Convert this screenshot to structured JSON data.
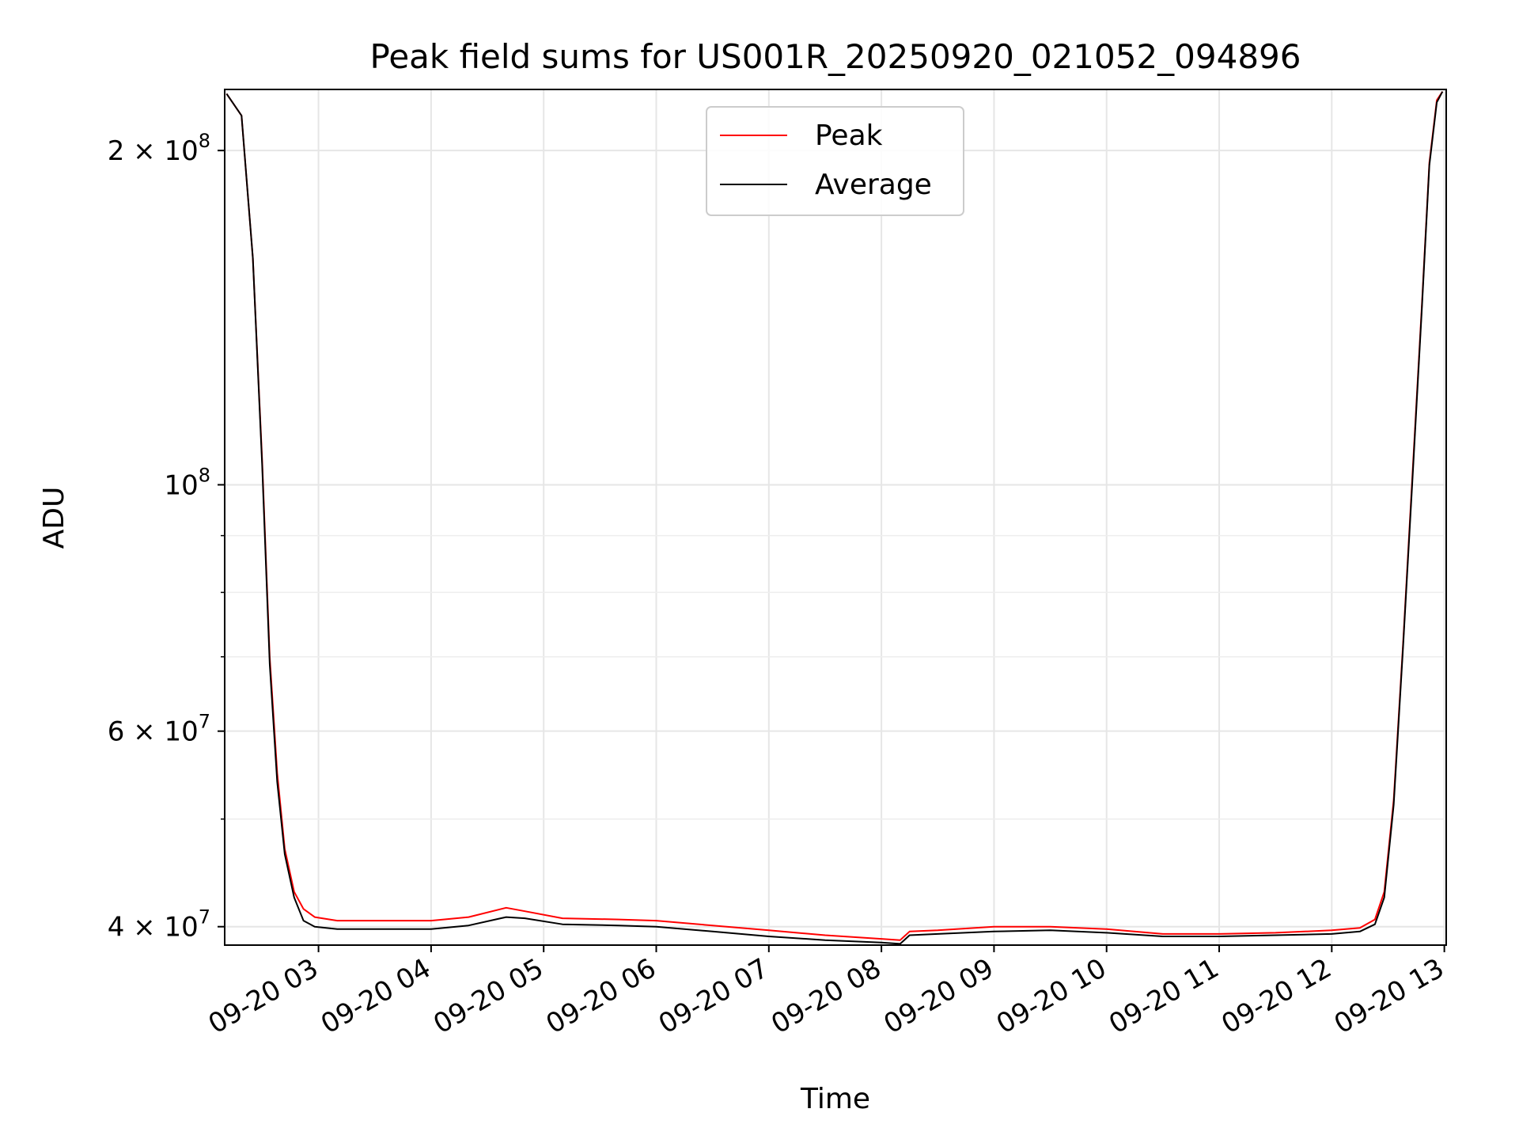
{
  "chart_data": {
    "type": "line",
    "title": "Peak field sums for US001R_20250920_021052_094896",
    "xlabel": "Time",
    "ylabel": "ADU",
    "y_scale": "log",
    "ylim": [
      38500000,
      227000000
    ],
    "xlim": [
      "2025-09-20 02:10",
      "2025-09-20 13:01"
    ],
    "grid": true,
    "legend_position": "top-center",
    "x_tick_labels": [
      "09-20 03",
      "09-20 04",
      "09-20 05",
      "09-20 06",
      "09-20 07",
      "09-20 08",
      "09-20 09",
      "09-20 10",
      "09-20 11",
      "09-20 12",
      "09-20 13"
    ],
    "x_tick_times": [
      "2025-09-20 03:00",
      "2025-09-20 04:00",
      "2025-09-20 05:00",
      "2025-09-20 06:00",
      "2025-09-20 07:00",
      "2025-09-20 08:00",
      "2025-09-20 09:00",
      "2025-09-20 10:00",
      "2025-09-20 11:00",
      "2025-09-20 12:00",
      "2025-09-20 13:00"
    ],
    "y_major_ticks": [
      {
        "value": 40000000,
        "label": "4 × 10",
        "exp": "7"
      },
      {
        "value": 60000000,
        "label": "6 × 10",
        "exp": "7"
      },
      {
        "value": 100000000,
        "label": "10",
        "exp": "8"
      },
      {
        "value": 200000000,
        "label": "2 × 10",
        "exp": "8"
      }
    ],
    "y_minor_ticks": [
      50000000,
      70000000,
      80000000,
      90000000
    ],
    "series": [
      {
        "name": "Peak",
        "color": "#ff0000",
        "x": [
          "2025-09-20 02:11",
          "2025-09-20 02:19",
          "2025-09-20 02:25",
          "2025-09-20 02:30",
          "2025-09-20 02:34",
          "2025-09-20 02:38",
          "2025-09-20 02:42",
          "2025-09-20 02:47",
          "2025-09-20 02:52",
          "2025-09-20 02:58",
          "2025-09-20 03:10",
          "2025-09-20 03:30",
          "2025-09-20 04:00",
          "2025-09-20 04:20",
          "2025-09-20 04:40",
          "2025-09-20 04:50",
          "2025-09-20 05:10",
          "2025-09-20 05:40",
          "2025-09-20 06:00",
          "2025-09-20 06:30",
          "2025-09-20 07:00",
          "2025-09-20 07:30",
          "2025-09-20 08:00",
          "2025-09-20 08:10",
          "2025-09-20 08:15",
          "2025-09-20 08:30",
          "2025-09-20 09:00",
          "2025-09-20 09:30",
          "2025-09-20 10:00",
          "2025-09-20 10:30",
          "2025-09-20 11:00",
          "2025-09-20 11:30",
          "2025-09-20 12:00",
          "2025-09-20 12:15",
          "2025-09-20 12:23",
          "2025-09-20 12:28",
          "2025-09-20 12:33",
          "2025-09-20 12:38",
          "2025-09-20 12:43",
          "2025-09-20 12:48",
          "2025-09-20 12:52",
          "2025-09-20 12:56",
          "2025-09-20 12:59"
        ],
        "values": [
          225000000,
          215000000,
          160000000,
          105000000,
          70000000,
          55000000,
          47000000,
          43000000,
          41500000,
          40800000,
          40500000,
          40500000,
          40500000,
          40800000,
          41600000,
          41300000,
          40700000,
          40600000,
          40500000,
          40100000,
          39700000,
          39300000,
          39000000,
          38900000,
          39600000,
          39700000,
          40000000,
          40000000,
          39800000,
          39400000,
          39400000,
          39500000,
          39700000,
          39900000,
          40600000,
          43000000,
          52000000,
          72000000,
          102000000,
          145000000,
          195000000,
          222000000,
          226000000
        ]
      },
      {
        "name": "Average",
        "color": "#000000",
        "x": [
          "2025-09-20 02:11",
          "2025-09-20 02:19",
          "2025-09-20 02:25",
          "2025-09-20 02:30",
          "2025-09-20 02:34",
          "2025-09-20 02:38",
          "2025-09-20 02:42",
          "2025-09-20 02:47",
          "2025-09-20 02:52",
          "2025-09-20 02:58",
          "2025-09-20 03:10",
          "2025-09-20 03:30",
          "2025-09-20 04:00",
          "2025-09-20 04:20",
          "2025-09-20 04:40",
          "2025-09-20 04:50",
          "2025-09-20 05:10",
          "2025-09-20 05:40",
          "2025-09-20 06:00",
          "2025-09-20 06:30",
          "2025-09-20 07:00",
          "2025-09-20 07:30",
          "2025-09-20 08:00",
          "2025-09-20 08:10",
          "2025-09-20 08:15",
          "2025-09-20 08:30",
          "2025-09-20 09:00",
          "2025-09-20 09:30",
          "2025-09-20 10:00",
          "2025-09-20 10:30",
          "2025-09-20 11:00",
          "2025-09-20 11:30",
          "2025-09-20 12:00",
          "2025-09-20 12:15",
          "2025-09-20 12:23",
          "2025-09-20 12:28",
          "2025-09-20 12:33",
          "2025-09-20 12:38",
          "2025-09-20 12:43",
          "2025-09-20 12:48",
          "2025-09-20 12:52",
          "2025-09-20 12:56",
          "2025-09-20 12:59"
        ],
        "values": [
          225000000,
          215000000,
          160000000,
          104000000,
          69000000,
          54000000,
          46500000,
          42500000,
          40500000,
          40000000,
          39800000,
          39800000,
          39800000,
          40100000,
          40800000,
          40700000,
          40200000,
          40100000,
          40000000,
          39600000,
          39200000,
          38900000,
          38700000,
          38600000,
          39300000,
          39400000,
          39600000,
          39700000,
          39500000,
          39200000,
          39200000,
          39300000,
          39400000,
          39600000,
          40200000,
          42500000,
          51500000,
          71500000,
          101000000,
          144000000,
          194000000,
          221000000,
          226000000
        ]
      }
    ]
  }
}
